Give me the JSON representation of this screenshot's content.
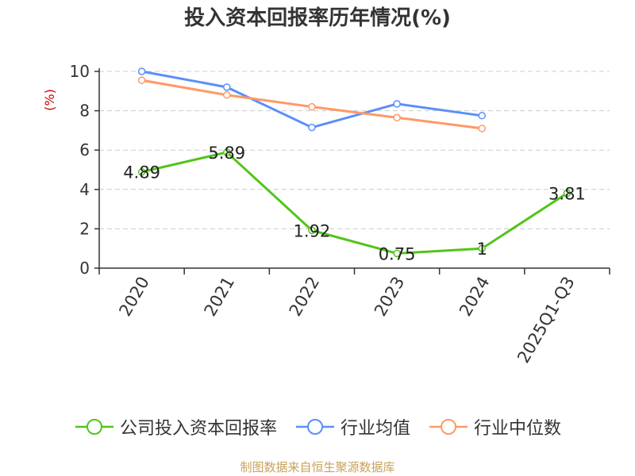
{
  "chart_data": {
    "type": "line",
    "title": "投入资本回报率历年情况(%)",
    "ylabel": "(%)",
    "xlabel": "",
    "categories": [
      "2020",
      "2021",
      "2022",
      "2023",
      "2024",
      "2025Q1-Q3"
    ],
    "yticks": [
      "0",
      "2",
      "4",
      "6",
      "8",
      "10"
    ],
    "ylim": [
      0,
      10
    ],
    "grid": true,
    "legend_position": "bottom",
    "series": [
      {
        "name": "公司投入资本回报率",
        "color": "#52c41a",
        "values": [
          4.89,
          5.89,
          1.92,
          0.75,
          1,
          3.81
        ],
        "labels": [
          "4.89",
          "5.89",
          "1.92",
          "0.75",
          "1",
          "3.81"
        ]
      },
      {
        "name": "行业均值",
        "color": "#5b8ff9",
        "values": [
          10.0,
          9.2,
          7.15,
          8.35,
          7.75,
          null
        ]
      },
      {
        "name": "行业中位数",
        "color": "#ff9966",
        "values": [
          9.55,
          8.8,
          8.2,
          7.65,
          7.1,
          null
        ]
      }
    ]
  },
  "footer": {
    "source": "制图数据来自恒生聚源数据库"
  },
  "colors": {
    "ylabel": "#cc0000",
    "axis": "#333333",
    "grid": "#cccccc",
    "source": "#c8a25a"
  }
}
